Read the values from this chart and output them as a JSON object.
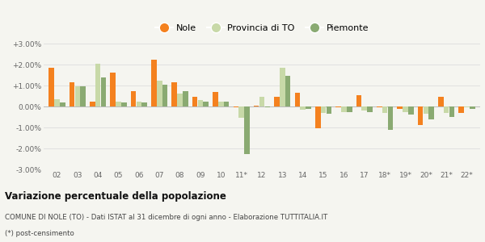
{
  "years": [
    "02",
    "03",
    "04",
    "05",
    "06",
    "07",
    "08",
    "09",
    "10",
    "11*",
    "12",
    "13",
    "14",
    "15",
    "16",
    "17",
    "18*",
    "19*",
    "20*",
    "21*",
    "22*"
  ],
  "nole": [
    1.85,
    1.15,
    0.25,
    1.6,
    0.75,
    2.25,
    1.15,
    0.45,
    0.7,
    -0.05,
    0.05,
    0.45,
    0.65,
    -1.02,
    -0.05,
    0.55,
    -0.05,
    -0.1,
    -0.9,
    0.45,
    -0.3
  ],
  "provincia": [
    0.35,
    0.95,
    2.05,
    0.25,
    0.25,
    1.25,
    0.6,
    0.3,
    0.25,
    -0.55,
    0.45,
    1.85,
    -0.15,
    -0.3,
    -0.25,
    -0.2,
    -0.3,
    -0.25,
    -0.35,
    -0.3,
    -0.05
  ],
  "piemonte": [
    0.2,
    0.95,
    1.4,
    0.2,
    0.2,
    1.05,
    0.75,
    0.25,
    0.25,
    -2.25,
    -0.05,
    1.45,
    -0.1,
    -0.35,
    -0.25,
    -0.25,
    -1.1,
    -0.4,
    -0.6,
    -0.5,
    -0.1
  ],
  "color_nole": "#f4811f",
  "color_provincia": "#c8d9a8",
  "color_piemonte": "#8aaa72",
  "ylim": [
    -3.0,
    3.0
  ],
  "yticks": [
    -3.0,
    -2.0,
    -1.0,
    0.0,
    1.0,
    2.0,
    3.0
  ],
  "ytick_labels": [
    "-3.00%",
    "-2.00%",
    "-1.00%",
    "0.00%",
    "+1.00%",
    "+2.00%",
    "+3.00%"
  ],
  "title": "Variazione percentuale della popolazione",
  "subtitle2": "COMUNE DI NOLE (TO) - Dati ISTAT al 31 dicembre di ogni anno - Elaborazione TUTTITALIA.IT",
  "subtitle3": "(*) post-censimento",
  "legend_labels": [
    "Nole",
    "Provincia di TO",
    "Piemonte"
  ],
  "bg_color": "#f5f5f0"
}
